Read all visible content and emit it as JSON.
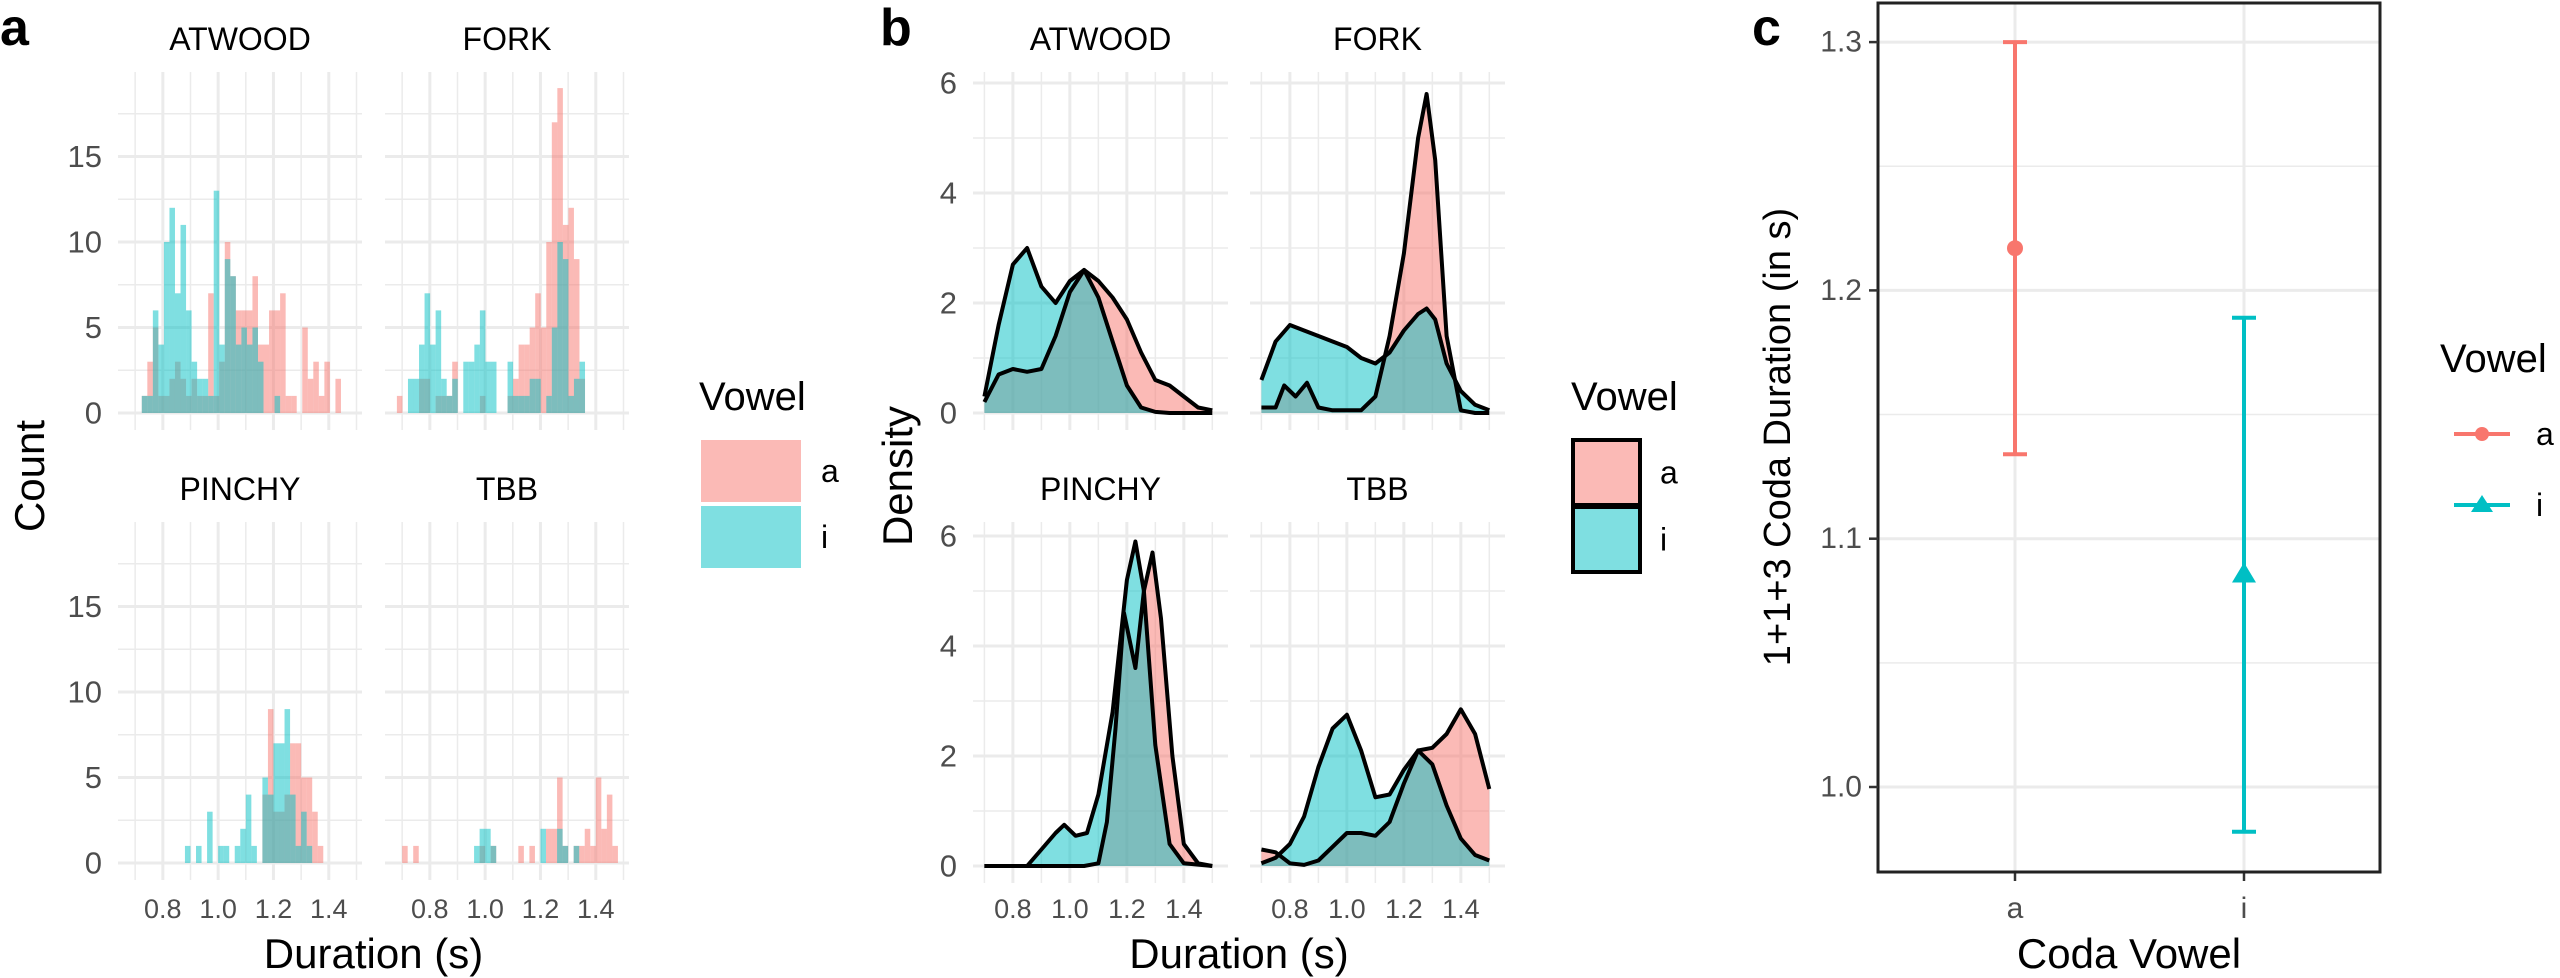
{
  "colors": {
    "a": "#F8766D",
    "i": "#00BFC4",
    "grid": "#EBEBEB",
    "outline": "#000000"
  },
  "chart_data": [
    {
      "panel_label": "a",
      "type": "bar",
      "subtype": "histogram",
      "xlabel": "Duration (s)",
      "ylabel": "Count",
      "xlim": [
        0.638,
        1.52
      ],
      "ylim": [
        0,
        20
      ],
      "xticks": [
        0.8,
        1.0,
        1.2,
        1.4
      ],
      "xtick_labels": [
        "0.8",
        "1.0",
        "1.2",
        "1.4"
      ],
      "yticks": [
        0,
        5,
        10,
        15
      ],
      "ytick_labels": [
        "0",
        "5",
        "10",
        "15"
      ],
      "grid": true,
      "legend": {
        "title": "Vowel",
        "entries": [
          "a",
          "i"
        ],
        "position": "right"
      },
      "facets": [
        {
          "name": "ATWOOD",
          "start": 0.724,
          "binwidth": 0.02,
          "a": [
            1,
            3,
            5,
            1,
            1,
            2,
            3,
            2,
            1,
            2,
            1,
            1,
            7,
            1,
            3,
            10,
            8,
            6,
            6,
            6,
            8,
            4,
            4,
            6,
            6,
            7,
            1,
            1,
            0,
            5,
            2,
            3,
            1,
            3,
            0,
            2
          ],
          "i": [
            1,
            1,
            6,
            4,
            10,
            12,
            7,
            11,
            6,
            3,
            2,
            2,
            1,
            13,
            4,
            9,
            8,
            4,
            5,
            4,
            5,
            3,
            0,
            0,
            1,
            0,
            0,
            0,
            0,
            0,
            0,
            0,
            0,
            0,
            0,
            0
          ]
        },
        {
          "name": "FORK",
          "start": 0.681,
          "binwidth": 0.02,
          "a": [
            1,
            0,
            0,
            0,
            2,
            2,
            0,
            1,
            1,
            1,
            3,
            0,
            0,
            0,
            0,
            1,
            0,
            0,
            0,
            0,
            1,
            2,
            4,
            4,
            5,
            7,
            5,
            10,
            17,
            19,
            11,
            12,
            9,
            2,
            0
          ],
          "i": [
            0,
            0,
            2,
            2,
            4,
            7,
            4,
            6,
            2,
            1,
            2,
            0,
            3,
            3,
            4,
            6,
            3,
            3,
            0,
            0,
            3,
            1,
            1,
            1,
            2,
            2,
            0,
            1,
            5,
            10,
            9,
            1,
            2,
            3,
            0
          ]
        },
        {
          "name": "PINCHY",
          "start": 0.88,
          "binwidth": 0.02,
          "a": [
            0,
            0,
            0,
            0,
            0,
            0,
            0,
            0,
            0,
            0,
            0,
            0,
            0,
            0,
            4,
            9,
            3,
            3,
            4,
            7,
            7,
            5,
            5,
            3,
            1,
            0
          ],
          "i": [
            1,
            0,
            1,
            0,
            3,
            0,
            1,
            1,
            0,
            1,
            2,
            4,
            1,
            0,
            5,
            4,
            7,
            7,
            9,
            4,
            1,
            3,
            1,
            0,
            0,
            0
          ]
        },
        {
          "name": "TBB",
          "start": 0.7,
          "binwidth": 0.02,
          "a": [
            1,
            0,
            1,
            0,
            0,
            0,
            0,
            0,
            0,
            0,
            0,
            0,
            0,
            0,
            1,
            0,
            1,
            0,
            0,
            0,
            0,
            1,
            0,
            1,
            0,
            0,
            2,
            2,
            5,
            1,
            0,
            1,
            1,
            2,
            1,
            5,
            2,
            4,
            1
          ],
          "i": [
            0,
            0,
            0,
            0,
            0,
            0,
            0,
            0,
            0,
            0,
            0,
            0,
            0,
            1,
            2,
            2,
            1,
            0,
            0,
            0,
            0,
            0,
            0,
            0,
            0,
            2,
            0,
            0,
            2,
            1,
            0,
            1,
            0,
            0,
            0,
            0,
            0,
            0,
            0
          ]
        }
      ]
    },
    {
      "panel_label": "b",
      "type": "area",
      "subtype": "density",
      "xlabel": "Duration (s)",
      "ylabel": "Density",
      "xlim": [
        0.66,
        1.555
      ],
      "ylim": [
        0,
        6.2
      ],
      "xticks": [
        0.8,
        1.0,
        1.2,
        1.4
      ],
      "xtick_labels": [
        "0.8",
        "1.0",
        "1.2",
        "1.4"
      ],
      "yticks": [
        0,
        2,
        4,
        6
      ],
      "ytick_labels": [
        "0",
        "2",
        "4",
        "6"
      ],
      "grid": true,
      "legend": {
        "title": "Vowel",
        "entries": [
          "a",
          "i"
        ],
        "position": "right"
      },
      "facets": [
        {
          "name": "ATWOOD",
          "a": {
            "x": [
              0.7,
              0.75,
              0.8,
              0.85,
              0.9,
              0.95,
              1.0,
              1.05,
              1.1,
              1.15,
              1.2,
              1.25,
              1.3,
              1.35,
              1.4,
              1.45,
              1.5
            ],
            "y": [
              0.2,
              0.7,
              0.8,
              0.75,
              0.8,
              1.4,
              2.2,
              2.6,
              2.4,
              2.1,
              1.7,
              1.1,
              0.6,
              0.5,
              0.3,
              0.1,
              0.05
            ]
          },
          "i": {
            "x": [
              0.7,
              0.75,
              0.8,
              0.85,
              0.9,
              0.95,
              1.0,
              1.05,
              1.1,
              1.15,
              1.2,
              1.25,
              1.3,
              1.35,
              1.4,
              1.45,
              1.5
            ],
            "y": [
              0.3,
              1.6,
              2.7,
              3.0,
              2.3,
              2.0,
              2.4,
              2.6,
              2.1,
              1.3,
              0.5,
              0.1,
              0.02,
              0,
              0,
              0,
              0
            ]
          }
        },
        {
          "name": "FORK",
          "a": {
            "x": [
              0.7,
              0.75,
              0.78,
              0.82,
              0.86,
              0.9,
              0.95,
              1.0,
              1.05,
              1.1,
              1.15,
              1.2,
              1.25,
              1.28,
              1.31,
              1.35,
              1.4,
              1.45,
              1.5
            ],
            "y": [
              0.1,
              0.1,
              0.5,
              0.3,
              0.55,
              0.1,
              0.05,
              0.05,
              0.05,
              0.3,
              1.4,
              2.9,
              5.0,
              5.8,
              4.6,
              1.4,
              0.05,
              0,
              0
            ]
          },
          "i": {
            "x": [
              0.7,
              0.75,
              0.8,
              0.85,
              0.9,
              0.95,
              1.0,
              1.05,
              1.1,
              1.15,
              1.2,
              1.25,
              1.28,
              1.31,
              1.35,
              1.4,
              1.45,
              1.5
            ],
            "y": [
              0.6,
              1.3,
              1.6,
              1.5,
              1.4,
              1.3,
              1.2,
              1.0,
              0.9,
              1.1,
              1.5,
              1.8,
              1.9,
              1.7,
              0.9,
              0.4,
              0.15,
              0.05
            ]
          }
        },
        {
          "name": "PINCHY",
          "a": {
            "x": [
              0.7,
              1.05,
              1.1,
              1.13,
              1.16,
              1.19,
              1.23,
              1.26,
              1.29,
              1.32,
              1.36,
              1.4,
              1.45,
              1.5
            ],
            "y": [
              0,
              0,
              0.05,
              0.8,
              2.5,
              4.6,
              3.6,
              5.0,
              5.7,
              4.5,
              2.0,
              0.4,
              0.05,
              0
            ]
          },
          "i": {
            "x": [
              0.7,
              0.85,
              0.9,
              0.95,
              0.98,
              1.02,
              1.06,
              1.1,
              1.15,
              1.2,
              1.23,
              1.26,
              1.3,
              1.35,
              1.4,
              1.5
            ],
            "y": [
              0,
              0,
              0.3,
              0.6,
              0.75,
              0.55,
              0.6,
              1.3,
              2.8,
              5.2,
              5.9,
              5.0,
              2.2,
              0.4,
              0.05,
              0
            ]
          }
        },
        {
          "name": "TBB",
          "a": {
            "x": [
              0.7,
              0.75,
              0.8,
              0.85,
              0.9,
              0.95,
              1.0,
              1.05,
              1.1,
              1.15,
              1.2,
              1.25,
              1.3,
              1.35,
              1.4,
              1.45,
              1.5
            ],
            "y": [
              0.3,
              0.25,
              0.05,
              0.02,
              0.1,
              0.35,
              0.6,
              0.6,
              0.55,
              0.8,
              1.5,
              2.1,
              2.15,
              2.4,
              2.85,
              2.4,
              1.4
            ]
          },
          "i": {
            "x": [
              0.7,
              0.75,
              0.8,
              0.85,
              0.9,
              0.95,
              1.0,
              1.05,
              1.1,
              1.15,
              1.2,
              1.25,
              1.3,
              1.35,
              1.4,
              1.45,
              1.5
            ],
            "y": [
              0.05,
              0.15,
              0.4,
              0.9,
              1.8,
              2.5,
              2.75,
              2.1,
              1.25,
              1.3,
              1.75,
              2.1,
              1.85,
              1.1,
              0.5,
              0.2,
              0.1
            ]
          }
        }
      ]
    },
    {
      "panel_label": "c",
      "type": "scatter",
      "subtype": "errorbar",
      "xlabel": "Coda Vowel",
      "ylabel": "1+1+3 Coda Duration (in s)",
      "categories": [
        "a",
        "i"
      ],
      "ylim": [
        0.966,
        1.316
      ],
      "yticks": [
        1.0,
        1.1,
        1.2,
        1.3
      ],
      "ytick_labels": [
        "1.0",
        "1.1",
        "1.2",
        "1.3"
      ],
      "grid": true,
      "series": [
        {
          "name": "a",
          "mean": 1.217,
          "lower": 1.134,
          "upper": 1.3,
          "marker": "circle"
        },
        {
          "name": "i",
          "mean": 1.086,
          "lower": 0.982,
          "upper": 1.189,
          "marker": "triangle"
        }
      ],
      "legend": {
        "title": "Vowel",
        "entries": [
          "a",
          "i"
        ],
        "position": "right"
      }
    }
  ]
}
